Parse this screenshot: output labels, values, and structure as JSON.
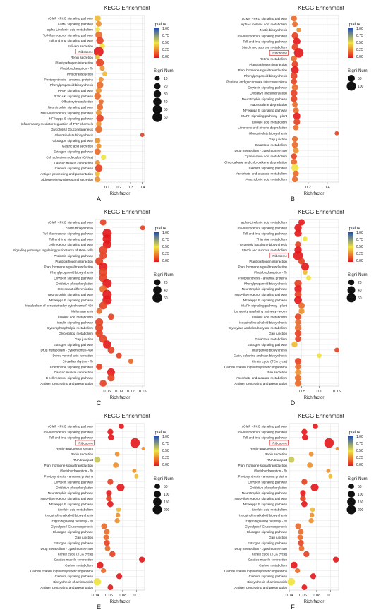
{
  "panels": [
    {
      "letter": "A",
      "title": "KEGG Enrichment",
      "xlabel": "Rich factor",
      "xlim": [
        0.0,
        0.42
      ],
      "xticks": [
        0.1,
        0.2,
        0.3,
        0.4
      ],
      "qvalue_label": "qvalue",
      "qvalue_ticks": [
        "1.00",
        "0.75",
        "0.50",
        "0.25",
        "0.00"
      ],
      "size_label": "Signi Num",
      "size_legend": [
        10,
        20,
        30,
        40,
        50,
        60
      ],
      "highlight": "Ribosome",
      "chart_data": {
        "type": "scatter",
        "categories": [
          "cGMP - PKG signaling pathway",
          "cAMP signaling pathway",
          "alpha-Linolenic acid metabolism",
          "Toll-like receptor signaling pathway",
          "Toll and Imd signaling pathway",
          "Salivary secretion",
          "Ribosome",
          "Renin secretion",
          "Plant-pathogen interaction",
          "Photobiodisruption - fly",
          "Phototransduction",
          "Photosynthesis - antenna proteins",
          "Phenylpropanoid biosynthesis",
          "PPAR signaling pathway",
          "PI3K-Akt signaling pathway",
          "Olfactory transduction",
          "Neurotrophin signaling pathway",
          "NOD-like receptor signaling pathway",
          "NF-kappa B signaling pathway",
          "Inflammatory mediator regulation of TRP channels",
          "Glycolysis / Gluconeogenesis",
          "Glucosinolate biosynthesis",
          "Glucagon signaling pathway",
          "Gastric acid secretion",
          "Estrogen signaling pathway",
          "Cell adhesion molecules (CAMs)",
          "Cardiac muscle contraction",
          "Calcium signaling pathway",
          "Antigen processing and presentation",
          "Aldosterone synthesis and secretion"
        ],
        "x": [
          0.02,
          0.03,
          0.02,
          0.03,
          0.04,
          0.06,
          0.03,
          0.02,
          0.04,
          0.06,
          0.08,
          0.05,
          0.04,
          0.03,
          0.02,
          0.05,
          0.04,
          0.03,
          0.04,
          0.03,
          0.03,
          0.4,
          0.02,
          0.03,
          0.02,
          0.07,
          0.02,
          0.03,
          0.02,
          0.02
        ],
        "signi_num": [
          20,
          15,
          10,
          25,
          30,
          12,
          60,
          10,
          35,
          10,
          8,
          10,
          25,
          15,
          25,
          10,
          20,
          15,
          30,
          12,
          25,
          5,
          15,
          10,
          20,
          12,
          10,
          30,
          10,
          15
        ],
        "qvalue": [
          0.4,
          0.3,
          0.5,
          0.2,
          0.1,
          0.5,
          0.0,
          0.4,
          0.1,
          0.3,
          0.4,
          0.3,
          0.2,
          0.3,
          0.2,
          0.2,
          0.2,
          0.3,
          0.1,
          0.3,
          0.2,
          0.1,
          0.3,
          0.3,
          0.2,
          0.5,
          0.3,
          0.1,
          0.4,
          0.3
        ]
      }
    },
    {
      "letter": "B",
      "title": "KEGG Enrichment",
      "xlabel": "Rich factor",
      "xlim": [
        0.0,
        0.52
      ],
      "xticks": [
        0.2,
        0.4
      ],
      "qvalue_label": "qvalue",
      "qvalue_ticks": [
        "1.00",
        "0.75",
        "0.50",
        "0.25",
        "0.00"
      ],
      "size_label": "Signi Num",
      "size_legend": [
        50,
        100
      ],
      "highlight": "Ribosome",
      "chart_data": {
        "type": "scatter",
        "categories": [
          "cGMP - PKG signaling pathway",
          "alpha-Linolenic acid metabolism",
          "Zeatin biosynthesis",
          "Toll-like receptor signaling pathway",
          "Toll and Imd signaling pathway",
          "Starch and sucrose metabolism",
          "Ribosome",
          "Retinol metabolism",
          "Plant-pathogen interaction",
          "Plant hormone signal transduction",
          "Phenylpropanoid biosynthesis",
          "Pentose and glucuronate interconversions",
          "Oxytocin signaling pathway",
          "Oxidative phosphorylation",
          "Neurotrophin signaling pathway",
          "Naphthalene degradation",
          "NF-kappa B signaling pathway",
          "MAPK signaling pathway - plant",
          "Linoleic acid metabolism",
          "Limonene and pinene degradation",
          "Glucosinolate biosynthesis",
          "Gap junction",
          "Galactose metabolism",
          "Drug metabolism - cytochrome P450",
          "Cyanoamino acid metabolism",
          "Chloroalkane and chloroalkene degradation",
          "Calcium signaling pathway",
          "Ascorbate and aldarate metabolism",
          "Arachidonic acid metabolism"
        ],
        "x": [
          0.05,
          0.06,
          0.1,
          0.06,
          0.08,
          0.06,
          0.1,
          0.05,
          0.06,
          0.06,
          0.05,
          0.05,
          0.06,
          0.05,
          0.05,
          0.06,
          0.07,
          0.08,
          0.08,
          0.07,
          0.5,
          0.06,
          0.06,
          0.07,
          0.05,
          0.05,
          0.06,
          0.07,
          0.06
        ],
        "signi_num": [
          30,
          25,
          15,
          40,
          55,
          40,
          110,
          30,
          40,
          60,
          45,
          30,
          35,
          45,
          40,
          25,
          30,
          50,
          40,
          25,
          10,
          30,
          35,
          30,
          30,
          35,
          55,
          30,
          30
        ],
        "qvalue": [
          0.2,
          0.2,
          0.3,
          0.1,
          0.0,
          0.1,
          0.0,
          0.2,
          0.1,
          0.0,
          0.1,
          0.1,
          0.2,
          0.1,
          0.1,
          0.2,
          0.2,
          0.0,
          0.1,
          0.2,
          0.1,
          0.2,
          0.2,
          0.3,
          0.1,
          0.2,
          0.5,
          0.2,
          0.2
        ]
      }
    },
    {
      "letter": "C",
      "title": "KEGG Enrichment",
      "xlabel": "Rich factor",
      "xlim": [
        0.03,
        0.155
      ],
      "xticks": [
        0.06,
        0.09,
        0.12,
        0.15
      ],
      "qvalue_label": "qvalue",
      "qvalue_ticks": [
        "1.00",
        "0.75",
        "0.50",
        "0.25",
        "0.00"
      ],
      "size_label": "Signi Num",
      "size_legend": [
        20,
        40,
        60
      ],
      "highlight": "",
      "chart_data": {
        "type": "scatter",
        "categories": [
          "cGMP - PKG signaling pathway",
          "Zeatin biosynthesis",
          "Toll-like receptor signaling pathway",
          "Toll and Imd signaling pathway",
          "T cell receptor signaling pathway",
          "Signaling pathways regulating pluripotency of stem cells",
          "Prolactin signaling pathway",
          "Plant-pathogen interaction",
          "Plant hormone signal transduction",
          "Phenylpropanoid biosynthesis",
          "Oxytocin signaling pathway",
          "Oxidative phosphorylation",
          "Osteoclast differentiation",
          "Neurotrophin signaling pathway",
          "NF-kappa B signaling pathway",
          "Metabolism of xenobiotics by cytochrome P450",
          "Melanogenesis",
          "Linoleic acid metabolism",
          "Insulin signaling pathway",
          "Glycerophospholipid metabolism",
          "Glycerolipid metabolism",
          "Gap junction",
          "Estrogen signaling pathway",
          "Drug metabolism - cytochrome P450",
          "Dorso-ventral axis formation",
          "Circadian rhythm - fly",
          "Chemokine signaling pathway",
          "Cardiac muscle contraction",
          "B cell receptor signaling pathway",
          "Antigen processing and presentation"
        ],
        "x": [
          0.05,
          0.15,
          0.06,
          0.06,
          0.06,
          0.05,
          0.05,
          0.04,
          0.05,
          0.05,
          0.05,
          0.06,
          0.05,
          0.06,
          0.06,
          0.05,
          0.04,
          0.07,
          0.04,
          0.04,
          0.04,
          0.05,
          0.06,
          0.07,
          0.09,
          0.12,
          0.04,
          0.07,
          0.07,
          0.05
        ],
        "signi_num": [
          20,
          10,
          55,
          50,
          45,
          40,
          30,
          35,
          45,
          40,
          40,
          55,
          30,
          55,
          55,
          35,
          15,
          20,
          35,
          35,
          30,
          35,
          40,
          25,
          15,
          10,
          20,
          35,
          30,
          25
        ],
        "qvalue": [
          0.1,
          0.1,
          0.0,
          0.0,
          0.0,
          0.1,
          0.1,
          0.1,
          0.0,
          0.1,
          0.1,
          0.0,
          0.2,
          0.0,
          0.0,
          0.1,
          0.2,
          0.1,
          0.1,
          0.1,
          0.1,
          0.1,
          0.0,
          0.1,
          0.1,
          0.2,
          0.1,
          0.0,
          0.1,
          0.1
        ]
      }
    },
    {
      "letter": "D",
      "title": "KEGG Enrichment",
      "xlabel": "Rich factor",
      "xlim": [
        0.015,
        0.155
      ],
      "xticks": [
        0.05,
        0.1,
        0.15
      ],
      "qvalue_label": "qvalue",
      "qvalue_ticks": [
        "1.00",
        "0.75",
        "0.50",
        "0.25",
        "0.00"
      ],
      "size_label": "Signi Num",
      "size_legend": [
        20,
        40,
        60
      ],
      "highlight": "Ribosome",
      "chart_data": {
        "type": "scatter",
        "categories": [
          "alpha-Linolenic acid metabolism",
          "Toll-like receptor signaling pathway",
          "Toll and Imd signaling pathway",
          "Thiamine metabolism",
          "Terpenoid backbone biosynthesis",
          "Starch and sucrose metabolism",
          "Ribosome",
          "Plant-pathogen interaction",
          "Plant hormone signal transduction",
          "Photobiodisruption - fly",
          "Photosynthesis - antenna proteins",
          "Phenylpropanoid biosynthesis",
          "Neurotrophin signaling pathway",
          "NOD-like receptor signaling pathway",
          "NF-kappa B signaling pathway",
          "MAPK signaling pathway - plant",
          "Longevity regulating pathway - worm",
          "Linoleic acid metabolism",
          "Isoquinoline alkaloid biosynthesis",
          "Glyoxylate and dicarboxylate metabolism",
          "Gap junction",
          "Galactose metabolism",
          "Estrogen signaling pathway",
          "Diterpenoid biosynthesis",
          "Cutin, suberine and wax biosynthesis",
          "Citrate cycle (TCA cycle)",
          "Carbon fixation in photosynthetic organisms",
          "Bile secretion",
          "Ascorbate and aldarate metabolism",
          "Antigen processing and presentation"
        ],
        "x": [
          0.05,
          0.04,
          0.04,
          0.06,
          0.04,
          0.04,
          0.04,
          0.05,
          0.06,
          0.06,
          0.07,
          0.04,
          0.04,
          0.04,
          0.04,
          0.05,
          0.05,
          0.04,
          0.04,
          0.04,
          0.04,
          0.04,
          0.03,
          0.15,
          0.1,
          0.04,
          0.04,
          0.04,
          0.04,
          0.04
        ],
        "signi_num": [
          25,
          35,
          35,
          10,
          20,
          35,
          70,
          25,
          40,
          10,
          10,
          35,
          35,
          30,
          40,
          25,
          20,
          25,
          20,
          25,
          25,
          20,
          20,
          10,
          10,
          25,
          20,
          20,
          25,
          25
        ],
        "qvalue": [
          0.0,
          0.0,
          0.0,
          0.5,
          0.1,
          0.0,
          0.0,
          0.1,
          0.0,
          0.4,
          0.5,
          0.1,
          0.0,
          0.1,
          0.0,
          0.2,
          0.3,
          0.1,
          0.2,
          0.2,
          0.1,
          0.1,
          0.4,
          0.1,
          0.5,
          0.1,
          0.2,
          0.3,
          0.2,
          0.2
        ]
      }
    },
    {
      "letter": "E",
      "title": "KEGG Enrichment",
      "xlabel": "Rich factor",
      "xlim": [
        0.04,
        0.112
      ],
      "xticks": [
        0.04,
        0.06,
        0.08,
        0.1
      ],
      "qvalue_label": "qvalue",
      "qvalue_ticks": [
        "1.00",
        "0.75",
        "0.50",
        "0.25",
        "0.00"
      ],
      "size_label": "Signi Num",
      "size_legend": [
        50,
        100,
        150,
        200
      ],
      "highlight": "Ribosome",
      "chart_data": {
        "type": "scatter",
        "categories": [
          "cGMP - PKG signaling pathway",
          "Toll-like receptor signaling pathway",
          "Toll and Imd signaling pathway",
          "Ribosome",
          "Renin-angiotensin system",
          "Renin secretion",
          "RNA transport",
          "Plant hormone signal transduction",
          "Photobiodisruption - fly",
          "Photosynthesis - antenna proteins",
          "Oxytocin signaling pathway",
          "Oxidative phosphorylation",
          "Neurotrophin signaling pathway",
          "NOD-like receptor signaling pathway",
          "NF-kappa B signaling pathway",
          "Linoleic acid metabolism",
          "Isoquinoline alkaloid biosynthesis",
          "Hippo signaling pathway - fly",
          "Glycolysis / Gluconeogenesis",
          "Glucagon signaling pathway",
          "Gap junction",
          "Estrogen signaling pathway",
          "Drug metabolism - cytochrome P450",
          "Citrate cycle (TCA cycle)",
          "Cardiac muscle contraction",
          "Carbon metabolism",
          "Carbon fixation in photosynthetic organisms",
          "Calcium signaling pathway",
          "Biosynthesis of amino acids",
          "Antigen processing and presentation"
        ],
        "x": [
          0.078,
          0.062,
          0.063,
          0.098,
          0.11,
          0.072,
          0.043,
          0.07,
          0.097,
          0.1,
          0.062,
          0.077,
          0.06,
          0.06,
          0.062,
          0.074,
          0.073,
          0.072,
          0.053,
          0.057,
          0.056,
          0.057,
          0.058,
          0.065,
          0.108,
          0.047,
          0.052,
          0.075,
          0.043,
          0.062
        ],
        "signi_num": [
          50,
          60,
          70,
          220,
          10,
          30,
          70,
          50,
          20,
          20,
          60,
          130,
          60,
          60,
          70,
          30,
          30,
          40,
          60,
          50,
          50,
          60,
          50,
          60,
          60,
          90,
          40,
          60,
          120,
          50
        ],
        "qvalue": [
          0.0,
          0.0,
          0.0,
          0.0,
          0.3,
          0.3,
          0.6,
          0.3,
          0.3,
          0.4,
          0.1,
          0.0,
          0.0,
          0.1,
          0.0,
          0.4,
          0.3,
          0.3,
          0.2,
          0.2,
          0.2,
          0.1,
          0.2,
          0.1,
          0.0,
          0.0,
          0.2,
          0.0,
          0.5,
          0.0
        ]
      }
    },
    {
      "letter": "F",
      "title": "KEGG Enrichment",
      "xlabel": "Rich factor",
      "xlim": [
        0.04,
        0.112
      ],
      "xticks": [
        0.04,
        0.06,
        0.08,
        0.1
      ],
      "qvalue_label": "qvalue",
      "qvalue_ticks": [
        "1.00",
        "0.75",
        "0.50",
        "0.25",
        "0.00"
      ],
      "size_label": "Signi Num",
      "size_legend": [
        50,
        100,
        150,
        200
      ],
      "highlight": "Ribosome",
      "chart_data": {
        "type": "scatter",
        "categories": [
          "cGMP - PKG signaling pathway",
          "Toll-like receptor signaling pathway",
          "Toll and Imd signaling pathway",
          "Ribosome",
          "Renin-angiotensin system",
          "Renin secretion",
          "RNA transport",
          "Plant hormone signal transduction",
          "Photobiodisruption - fly",
          "Photosynthesis - antenna proteins",
          "Oxytocin signaling pathway",
          "Oxidative phosphorylation",
          "Neurotrophin signaling pathway",
          "NOD-like receptor signaling pathway",
          "NF-kappa B signaling pathway",
          "Linoleic acid metabolism",
          "Isoquinoline alkaloid biosynthesis",
          "Hippo signaling pathway - fly",
          "Glycolysis / Gluconeogenesis",
          "Glucagon signaling pathway",
          "Gap junction",
          "Estrogen signaling pathway",
          "Drug metabolism - cytochrome P450",
          "Citrate cycle (TCA cycle)",
          "Cardiac muscle contraction",
          "Carbon metabolism",
          "Carbon fixation in photosynthetic organisms",
          "Calcium signaling pathway",
          "Biosynthesis of amino acids",
          "Antigen processing and presentation"
        ],
        "x": [
          0.078,
          0.062,
          0.063,
          0.098,
          0.11,
          0.072,
          0.043,
          0.07,
          0.097,
          0.1,
          0.062,
          0.077,
          0.06,
          0.06,
          0.062,
          0.074,
          0.073,
          0.072,
          0.053,
          0.057,
          0.056,
          0.057,
          0.058,
          0.065,
          0.108,
          0.047,
          0.052,
          0.075,
          0.043,
          0.062
        ],
        "signi_num": [
          50,
          60,
          70,
          220,
          10,
          30,
          70,
          50,
          20,
          20,
          60,
          130,
          60,
          60,
          70,
          30,
          30,
          40,
          60,
          50,
          50,
          60,
          50,
          60,
          60,
          90,
          40,
          60,
          120,
          50
        ],
        "qvalue": [
          0.0,
          0.0,
          0.0,
          0.0,
          0.3,
          0.3,
          0.6,
          0.3,
          0.3,
          0.4,
          0.1,
          0.0,
          0.0,
          0.1,
          0.0,
          0.4,
          0.3,
          0.3,
          0.2,
          0.2,
          0.2,
          0.1,
          0.2,
          0.1,
          0.0,
          0.0,
          0.2,
          0.0,
          0.5,
          0.0
        ]
      }
    }
  ],
  "colors": {
    "q_low": "#e41a1c",
    "q_mid": "#f0e442",
    "q_high": "#1f4fb4",
    "grid": "#e6e6e6",
    "highlight_box": "#d62728"
  }
}
